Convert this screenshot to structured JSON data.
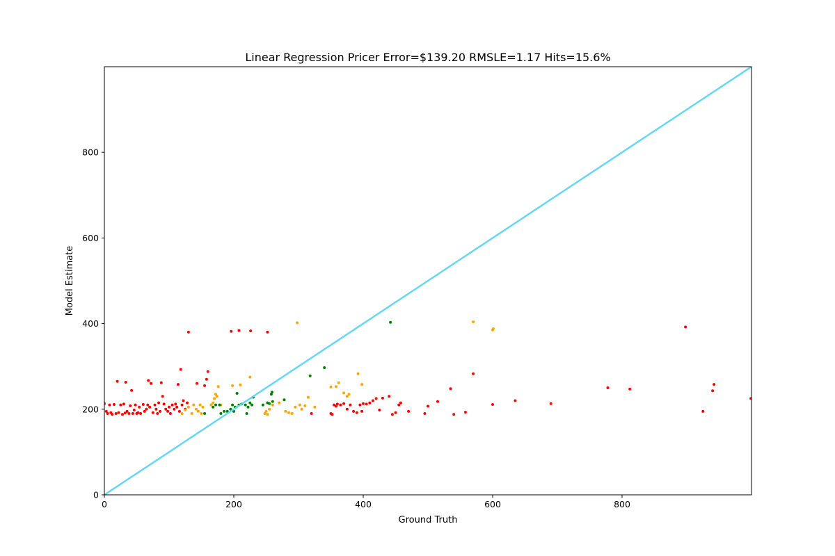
{
  "chart_data": {
    "type": "scatter",
    "title": "Linear Regression Pricer Error=$139.20 RMSLE=1.17 Hits=15.6%",
    "xlabel": "Ground Truth",
    "ylabel": "Model Estimate",
    "xlim": [
      0,
      1000
    ],
    "ylim": [
      0,
      1000
    ],
    "xticks": [
      0,
      200,
      400,
      600,
      800
    ],
    "yticks": [
      0,
      200,
      400,
      600,
      800
    ],
    "grid": false,
    "reference_line": {
      "x": [
        0,
        1000
      ],
      "y": [
        0,
        1000
      ],
      "color": "#66d6f5"
    },
    "series": [
      {
        "color": "#ff0000",
        "points": [
          [
            0,
            213
          ],
          [
            3,
            195
          ],
          [
            5,
            190
          ],
          [
            8,
            210
          ],
          [
            10,
            192
          ],
          [
            12,
            188
          ],
          [
            15,
            211
          ],
          [
            18,
            190
          ],
          [
            20,
            265
          ],
          [
            22,
            192
          ],
          [
            25,
            210
          ],
          [
            28,
            188
          ],
          [
            30,
            212
          ],
          [
            32,
            191
          ],
          [
            33,
            263
          ],
          [
            35,
            195
          ],
          [
            38,
            190
          ],
          [
            40,
            208
          ],
          [
            42,
            244
          ],
          [
            44,
            190
          ],
          [
            46,
            198
          ],
          [
            48,
            210
          ],
          [
            50,
            190
          ],
          [
            52,
            192
          ],
          [
            54,
            205
          ],
          [
            56,
            190
          ],
          [
            60,
            211
          ],
          [
            62,
            195
          ],
          [
            65,
            200
          ],
          [
            67,
            210
          ],
          [
            68,
            267
          ],
          [
            70,
            205
          ],
          [
            72,
            260
          ],
          [
            75,
            192
          ],
          [
            78,
            210
          ],
          [
            80,
            200
          ],
          [
            82,
            190
          ],
          [
            84,
            215
          ],
          [
            86,
            195
          ],
          [
            88,
            262
          ],
          [
            90,
            230
          ],
          [
            92,
            212
          ],
          [
            95,
            200
          ],
          [
            98,
            195
          ],
          [
            100,
            205
          ],
          [
            102,
            190
          ],
          [
            105,
            210
          ],
          [
            108,
            200
          ],
          [
            110,
            212
          ],
          [
            112,
            205
          ],
          [
            114,
            258
          ],
          [
            116,
            195
          ],
          [
            118,
            293
          ],
          [
            120,
            210
          ],
          [
            122,
            220
          ],
          [
            125,
            200
          ],
          [
            128,
            215
          ],
          [
            130,
            380
          ],
          [
            143,
            260
          ],
          [
            155,
            255
          ],
          [
            158,
            270
          ],
          [
            160,
            288
          ],
          [
            196,
            382
          ],
          [
            208,
            384
          ],
          [
            226,
            383
          ],
          [
            252,
            380
          ],
          [
            320,
            190
          ],
          [
            350,
            190
          ],
          [
            352,
            188
          ],
          [
            355,
            210
          ],
          [
            358,
            207
          ],
          [
            360,
            212
          ],
          [
            365,
            210
          ],
          [
            370,
            213
          ],
          [
            375,
            200
          ],
          [
            380,
            210
          ],
          [
            385,
            195
          ],
          [
            390,
            192
          ],
          [
            395,
            210
          ],
          [
            398,
            195
          ],
          [
            400,
            213
          ],
          [
            405,
            212
          ],
          [
            410,
            215
          ],
          [
            415,
            220
          ],
          [
            420,
            225
          ],
          [
            425,
            198
          ],
          [
            430,
            226
          ],
          [
            440,
            230
          ],
          [
            445,
            188
          ],
          [
            450,
            192
          ],
          [
            455,
            210
          ],
          [
            458,
            215
          ],
          [
            470,
            195
          ],
          [
            495,
            190
          ],
          [
            500,
            207
          ],
          [
            515,
            218
          ],
          [
            535,
            248
          ],
          [
            540,
            188
          ],
          [
            558,
            193
          ],
          [
            570,
            283
          ],
          [
            600,
            211
          ],
          [
            635,
            220
          ],
          [
            690,
            213
          ],
          [
            778,
            250
          ],
          [
            812,
            247
          ],
          [
            898,
            392
          ],
          [
            925,
            195
          ],
          [
            940,
            243
          ],
          [
            942,
            258
          ],
          [
            999,
            225
          ]
        ]
      },
      {
        "color": "#ffa500",
        "points": [
          [
            120,
            190
          ],
          [
            125,
            198
          ],
          [
            130,
            205
          ],
          [
            135,
            190
          ],
          [
            138,
            210
          ],
          [
            142,
            200
          ],
          [
            145,
            195
          ],
          [
            148,
            210
          ],
          [
            150,
            190
          ],
          [
            152,
            205
          ],
          [
            165,
            210
          ],
          [
            168,
            215
          ],
          [
            170,
            225
          ],
          [
            172,
            235
          ],
          [
            174,
            230
          ],
          [
            176,
            253
          ],
          [
            180,
            210
          ],
          [
            198,
            255
          ],
          [
            210,
            257
          ],
          [
            225,
            275
          ],
          [
            248,
            190
          ],
          [
            250,
            195
          ],
          [
            252,
            188
          ],
          [
            255,
            200
          ],
          [
            260,
            210
          ],
          [
            270,
            215
          ],
          [
            280,
            195
          ],
          [
            285,
            192
          ],
          [
            290,
            190
          ],
          [
            295,
            205
          ],
          [
            298,
            402
          ],
          [
            302,
            210
          ],
          [
            305,
            200
          ],
          [
            310,
            208
          ],
          [
            315,
            228
          ],
          [
            325,
            205
          ],
          [
            350,
            252
          ],
          [
            358,
            253
          ],
          [
            362,
            262
          ],
          [
            370,
            238
          ],
          [
            375,
            230
          ],
          [
            378,
            235
          ],
          [
            392,
            283
          ],
          [
            398,
            258
          ],
          [
            570,
            404
          ],
          [
            600,
            385
          ],
          [
            601,
            388
          ]
        ]
      },
      {
        "color": "#008000",
        "points": [
          [
            155,
            190
          ],
          [
            168,
            205
          ],
          [
            172,
            210
          ],
          [
            178,
            210
          ],
          [
            180,
            190
          ],
          [
            185,
            195
          ],
          [
            190,
            195
          ],
          [
            195,
            200
          ],
          [
            198,
            210
          ],
          [
            200,
            195
          ],
          [
            202,
            205
          ],
          [
            205,
            237
          ],
          [
            208,
            210
          ],
          [
            212,
            212
          ],
          [
            218,
            210
          ],
          [
            220,
            190
          ],
          [
            222,
            205
          ],
          [
            225,
            215
          ],
          [
            228,
            210
          ],
          [
            230,
            228
          ],
          [
            245,
            210
          ],
          [
            252,
            215
          ],
          [
            255,
            213
          ],
          [
            258,
            235
          ],
          [
            259,
            240
          ],
          [
            260,
            218
          ],
          [
            278,
            222
          ],
          [
            318,
            278
          ],
          [
            340,
            297
          ],
          [
            442,
            403
          ]
        ]
      }
    ]
  }
}
